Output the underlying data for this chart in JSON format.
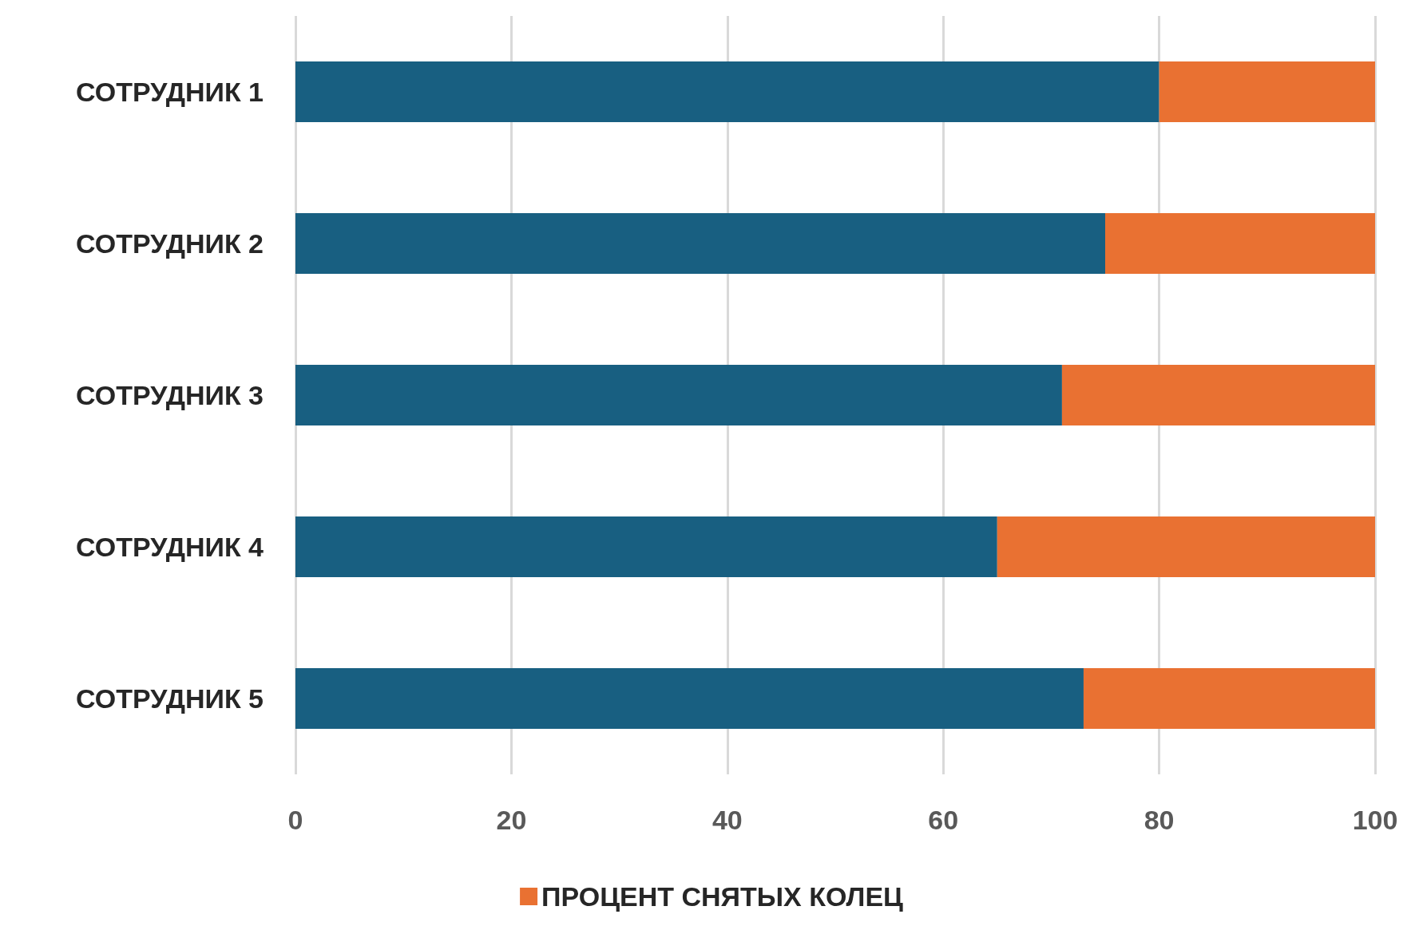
{
  "chart_data": {
    "type": "bar",
    "orientation": "horizontal",
    "stacked": true,
    "categories": [
      "СОТРУДНИК 1",
      "СОТРУДНИК 2",
      "СОТРУДНИК 3",
      "СОТРУДНИК 4",
      "СОТРУДНИК 5"
    ],
    "series": [
      {
        "color": "#185f81",
        "values": [
          80,
          75,
          71,
          65,
          73
        ]
      },
      {
        "name": "ПРОЦЕНТ СНЯТЫХ КОЛЕЦ",
        "color": "#e97132",
        "values": [
          20,
          25,
          29,
          35,
          27
        ]
      }
    ],
    "xlim": [
      0,
      100
    ],
    "xticks": [
      0,
      20,
      40,
      60,
      80,
      100
    ],
    "grid": "x",
    "legend": "bottom"
  }
}
